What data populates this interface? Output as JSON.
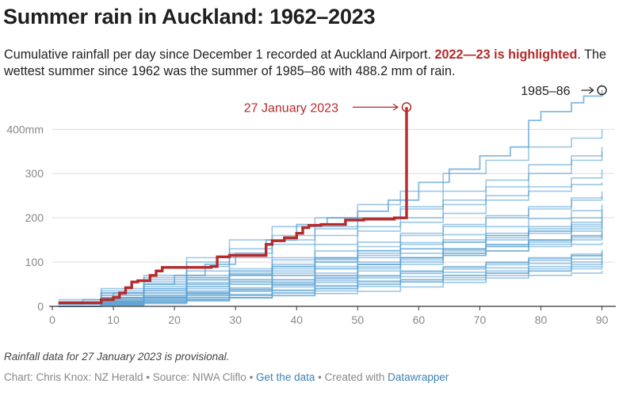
{
  "header": {
    "title": "Summer rain in Auckland: 1962–2023",
    "desc_part1": "Cumulative rainfall per day since December 1 recorded at Auckland Airport. ",
    "desc_highlight": "2022—23 is highlighted",
    "desc_part2": ". The wettest summer since 1962 was the summer of 1985–86 with 488.2 mm of rain."
  },
  "footer": {
    "note": "Rainfall data for 27 January 2023 is provisional.",
    "byline_prefix": "Chart: Chris Knox: NZ Herald • Source: NIWA Cliflo • ",
    "get_data_link": "Get the data",
    "byline_mid": " • Created with ",
    "datawrapper_link": "Datawrapper"
  },
  "colors": {
    "highlight": "#b52a2a",
    "background_lines": "#5aa2d4",
    "axis": "#333333",
    "grid": "#dddddd"
  },
  "chart_data": {
    "type": "line",
    "title": "Summer rain in Auckland: 1962–2023",
    "xlabel": "",
    "ylabel": "",
    "xlim": [
      0,
      92
    ],
    "ylim": [
      0,
      490
    ],
    "x_ticks": [
      0,
      10,
      20,
      30,
      40,
      50,
      60,
      70,
      80,
      90
    ],
    "y_ticks": [
      0,
      100,
      200,
      300,
      400
    ],
    "y_tick_labels": [
      "0",
      "100",
      "200",
      "300",
      "400mm"
    ],
    "grid": true,
    "highlighted_series": {
      "name": "2022—23",
      "x": [
        1,
        6,
        8,
        10,
        11,
        12,
        13,
        14,
        16,
        17,
        18,
        26,
        27,
        29,
        34,
        35,
        36,
        38,
        40,
        41,
        42,
        44,
        47,
        48,
        49,
        51,
        56,
        57,
        58
      ],
      "y": [
        8,
        8,
        15,
        20,
        30,
        42,
        55,
        58,
        70,
        80,
        88,
        90,
        112,
        115,
        115,
        140,
        148,
        155,
        165,
        178,
        183,
        185,
        185,
        195,
        195,
        197,
        200,
        200,
        450
      ]
    },
    "wettest_series": {
      "name": "1985–86",
      "x": [
        1,
        5,
        10,
        15,
        20,
        25,
        30,
        35,
        40,
        45,
        50,
        55,
        60,
        65,
        70,
        75,
        78,
        80,
        85,
        87,
        90
      ],
      "y": [
        5,
        15,
        30,
        50,
        70,
        95,
        120,
        150,
        185,
        200,
        215,
        240,
        280,
        310,
        340,
        360,
        420,
        440,
        460,
        475,
        488.2
      ]
    },
    "background_series": [
      {
        "x": [
          1,
          8,
          15,
          22,
          29,
          36,
          43,
          50,
          57,
          64,
          71,
          78,
          85,
          90
        ],
        "y": [
          0,
          10,
          25,
          30,
          50,
          60,
          70,
          85,
          95,
          120,
          140,
          150,
          170,
          180
        ]
      },
      {
        "x": [
          1,
          8,
          15,
          22,
          29,
          36,
          43,
          50,
          57,
          64,
          71,
          78,
          85,
          90
        ],
        "y": [
          5,
          12,
          20,
          45,
          55,
          70,
          100,
          110,
          120,
          130,
          160,
          175,
          200,
          215
        ]
      },
      {
        "x": [
          1,
          8,
          15,
          22,
          29,
          36,
          43,
          50,
          57,
          64,
          71,
          78,
          85,
          90
        ],
        "y": [
          0,
          5,
          10,
          15,
          20,
          25,
          35,
          45,
          55,
          60,
          70,
          80,
          85,
          90
        ]
      },
      {
        "x": [
          1,
          8,
          15,
          22,
          29,
          36,
          43,
          50,
          57,
          64,
          71,
          78,
          85,
          90
        ],
        "y": [
          10,
          30,
          55,
          70,
          80,
          95,
          110,
          125,
          140,
          150,
          165,
          180,
          190,
          200
        ]
      },
      {
        "x": [
          1,
          8,
          15,
          22,
          29,
          36,
          43,
          50,
          57,
          64,
          71,
          78,
          85,
          90
        ],
        "y": [
          0,
          20,
          40,
          80,
          110,
          140,
          160,
          180,
          200,
          230,
          250,
          270,
          290,
          310
        ]
      },
      {
        "x": [
          1,
          8,
          15,
          22,
          29,
          36,
          43,
          50,
          57,
          64,
          71,
          78,
          85,
          90
        ],
        "y": [
          0,
          10,
          20,
          35,
          50,
          60,
          65,
          70,
          80,
          90,
          100,
          110,
          115,
          120
        ]
      },
      {
        "x": [
          1,
          8,
          15,
          22,
          29,
          36,
          43,
          50,
          57,
          64,
          71,
          78,
          85,
          90
        ],
        "y": [
          0,
          30,
          65,
          90,
          120,
          150,
          175,
          200,
          225,
          260,
          285,
          320,
          340,
          350
        ]
      },
      {
        "x": [
          1,
          8,
          15,
          22,
          29,
          36,
          43,
          50,
          57,
          64,
          71,
          78,
          85,
          90
        ],
        "y": [
          5,
          15,
          25,
          40,
          55,
          75,
          85,
          95,
          110,
          125,
          135,
          150,
          160,
          170
        ]
      },
      {
        "x": [
          1,
          8,
          15,
          22,
          29,
          36,
          43,
          50,
          57,
          64,
          71,
          78,
          85,
          90
        ],
        "y": [
          0,
          8,
          18,
          28,
          38,
          48,
          58,
          68,
          78,
          88,
          98,
          108,
          118,
          128
        ]
      },
      {
        "x": [
          1,
          8,
          15,
          22,
          29,
          36,
          43,
          50,
          57,
          64,
          71,
          78,
          85,
          90
        ],
        "y": [
          0,
          25,
          60,
          110,
          150,
          180,
          200,
          230,
          260,
          300,
          330,
          360,
          380,
          400
        ]
      },
      {
        "x": [
          1,
          8,
          15,
          22,
          29,
          36,
          43,
          50,
          57,
          64,
          71,
          78,
          85,
          90
        ],
        "y": [
          0,
          5,
          15,
          25,
          35,
          55,
          75,
          95,
          105,
          115,
          125,
          135,
          140,
          145
        ]
      },
      {
        "x": [
          1,
          8,
          15,
          22,
          29,
          36,
          43,
          50,
          57,
          64,
          71,
          78,
          85,
          90
        ],
        "y": [
          15,
          35,
          50,
          60,
          70,
          90,
          105,
          120,
          130,
          145,
          160,
          170,
          180,
          195
        ]
      },
      {
        "x": [
          1,
          8,
          15,
          22,
          29,
          36,
          43,
          50,
          57,
          64,
          71,
          78,
          85,
          90
        ],
        "y": [
          0,
          2,
          6,
          12,
          20,
          30,
          40,
          50,
          60,
          70,
          75,
          80,
          90,
          100
        ]
      },
      {
        "x": [
          1,
          8,
          15,
          22,
          29,
          36,
          43,
          50,
          57,
          64,
          71,
          78,
          85,
          90
        ],
        "y": [
          0,
          15,
          30,
          50,
          70,
          90,
          110,
          135,
          160,
          180,
          200,
          220,
          240,
          250
        ]
      },
      {
        "x": [
          1,
          8,
          15,
          22,
          29,
          36,
          43,
          50,
          57,
          64,
          71,
          78,
          85,
          90
        ],
        "y": [
          0,
          10,
          30,
          50,
          60,
          80,
          90,
          100,
          110,
          115,
          125,
          140,
          150,
          160
        ]
      },
      {
        "x": [
          1,
          8,
          15,
          22,
          29,
          36,
          43,
          50,
          57,
          64,
          71,
          78,
          85,
          90
        ],
        "y": [
          0,
          20,
          40,
          60,
          80,
          110,
          140,
          170,
          190,
          210,
          240,
          260,
          275,
          280
        ]
      },
      {
        "x": [
          1,
          8,
          15,
          22,
          29,
          36,
          43,
          50,
          57,
          64,
          71,
          78,
          85,
          90
        ],
        "y": [
          0,
          5,
          10,
          20,
          25,
          30,
          40,
          50,
          55,
          65,
          75,
          90,
          100,
          110
        ]
      },
      {
        "x": [
          1,
          8,
          15,
          22,
          29,
          36,
          43,
          50,
          57,
          64,
          71,
          78,
          85,
          90
        ],
        "y": [
          10,
          20,
          35,
          45,
          60,
          70,
          85,
          95,
          110,
          120,
          135,
          145,
          155,
          165
        ]
      },
      {
        "x": [
          1,
          8,
          15,
          22,
          29,
          36,
          43,
          50,
          57,
          64,
          71,
          78,
          85,
          90
        ],
        "y": [
          0,
          12,
          22,
          32,
          42,
          52,
          62,
          80,
          100,
          130,
          150,
          165,
          175,
          185
        ]
      },
      {
        "x": [
          1,
          8,
          15,
          22,
          29,
          36,
          43,
          50,
          57,
          64,
          71,
          78,
          85,
          90
        ],
        "y": [
          0,
          3,
          8,
          15,
          25,
          35,
          45,
          55,
          60,
          70,
          80,
          85,
          95,
          105
        ]
      },
      {
        "x": [
          1,
          8,
          15,
          22,
          29,
          36,
          43,
          50,
          57,
          64,
          71,
          78,
          85,
          90
        ],
        "y": [
          0,
          30,
          50,
          65,
          75,
          85,
          100,
          115,
          130,
          145,
          155,
          170,
          185,
          220
        ]
      },
      {
        "x": [
          1,
          8,
          15,
          22,
          29,
          36,
          43,
          50,
          57,
          64,
          71,
          78,
          85,
          90
        ],
        "y": [
          0,
          6,
          14,
          24,
          34,
          44,
          54,
          64,
          74,
          84,
          94,
          104,
          114,
          124
        ]
      },
      {
        "x": [
          1,
          8,
          15,
          22,
          29,
          36,
          43,
          50,
          57,
          64,
          71,
          78,
          85,
          90
        ],
        "y": [
          5,
          25,
          45,
          65,
          85,
          105,
          125,
          145,
          165,
          185,
          205,
          225,
          245,
          260
        ]
      },
      {
        "x": [
          1,
          8,
          15,
          22,
          29,
          36,
          43,
          50,
          57,
          64,
          71,
          78,
          85,
          90
        ],
        "y": [
          0,
          4,
          9,
          14,
          19,
          24,
          29,
          34,
          44,
          54,
          64,
          70,
          75,
          80
        ]
      },
      {
        "x": [
          1,
          8,
          15,
          22,
          29,
          36,
          43,
          50,
          57,
          64,
          71,
          78,
          85,
          90
        ],
        "y": [
          0,
          18,
          36,
          54,
          72,
          90,
          108,
          126,
          144,
          162,
          180,
          198,
          216,
          230
        ]
      },
      {
        "x": [
          1,
          8,
          15,
          22,
          29,
          36,
          43,
          50,
          57,
          64,
          71,
          78,
          85,
          90
        ],
        "y": [
          0,
          9,
          19,
          29,
          39,
          49,
          69,
          89,
          109,
          129,
          139,
          149,
          159,
          169
        ]
      },
      {
        "x": [
          1,
          8,
          15,
          22,
          29,
          36,
          43,
          50,
          57,
          64,
          71,
          78,
          85,
          90
        ],
        "y": [
          0,
          40,
          70,
          100,
          130,
          160,
          180,
          200,
          220,
          240,
          270,
          300,
          330,
          360
        ]
      },
      {
        "x": [
          1,
          8,
          15,
          22,
          29,
          36,
          43,
          50,
          57,
          64,
          71,
          78,
          85,
          90
        ],
        "y": [
          0,
          7,
          13,
          19,
          27,
          37,
          47,
          57,
          67,
          77,
          87,
          97,
          107,
          117
        ]
      }
    ],
    "annotations": [
      {
        "text": "27 January 2023",
        "x": 58,
        "y": 450
      },
      {
        "text": "1985–86",
        "x": 90,
        "y": 488.2
      }
    ]
  }
}
